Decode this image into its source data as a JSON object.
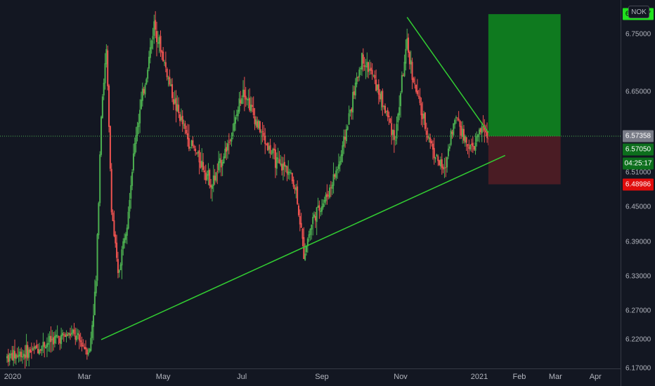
{
  "symbol": {
    "currency": "NOK"
  },
  "price_axis": {
    "ticks": [
      "6.75000",
      "6.65000",
      "6.51000",
      "6.45000",
      "6.39000",
      "6.33000",
      "6.27000",
      "6.22000",
      "6.17000"
    ]
  },
  "time_axis": {
    "labels": [
      "2020",
      "Mar",
      "May",
      "Jul",
      "Sep",
      "Nov",
      "2021",
      "Feb",
      "Mar",
      "Apr"
    ]
  },
  "badges": {
    "target": "6.78547",
    "last": "6.57358",
    "current": "6.57050",
    "countdown": "04:25:17",
    "stop": "6.48986"
  },
  "colors": {
    "background": "#131722",
    "up": "#26a69a",
    "up_candle": "#4caf50",
    "down": "#ef5350",
    "profit_zone": "#0f7a1f",
    "loss_zone": "#4a1c24",
    "trendline": "#32cd32",
    "target_badge": "#21e11f",
    "stop_badge": "#e00c0c"
  },
  "chart_data": {
    "type": "candlestick",
    "title": "",
    "xlabel": "",
    "ylabel": "",
    "ylim": [
      6.17,
      6.81
    ],
    "x_range": [
      "2020-01-01",
      "2021-04-15"
    ],
    "series": [
      {
        "name": "",
        "points": [
          [
            "2020-01-01",
            6.19
          ],
          [
            "2020-01-20",
            6.2
          ],
          [
            "2020-02-05",
            6.22
          ],
          [
            "2020-02-20",
            6.23
          ],
          [
            "2020-03-05",
            6.2
          ],
          [
            "2020-03-10",
            6.32
          ],
          [
            "2020-03-14",
            6.62
          ],
          [
            "2020-03-18",
            6.72
          ],
          [
            "2020-03-22",
            6.45
          ],
          [
            "2020-03-27",
            6.33
          ],
          [
            "2020-04-03",
            6.43
          ],
          [
            "2020-04-10",
            6.58
          ],
          [
            "2020-04-18",
            6.68
          ],
          [
            "2020-04-24",
            6.77
          ],
          [
            "2020-05-02",
            6.7
          ],
          [
            "2020-05-10",
            6.63
          ],
          [
            "2020-05-20",
            6.57
          ],
          [
            "2020-05-30",
            6.53
          ],
          [
            "2020-06-08",
            6.49
          ],
          [
            "2020-06-15",
            6.53
          ],
          [
            "2020-06-25",
            6.59
          ],
          [
            "2020-07-02",
            6.66
          ],
          [
            "2020-07-10",
            6.61
          ],
          [
            "2020-07-20",
            6.56
          ],
          [
            "2020-07-30",
            6.52
          ],
          [
            "2020-08-05",
            6.52
          ],
          [
            "2020-08-12",
            6.48
          ],
          [
            "2020-08-18",
            6.37
          ],
          [
            "2020-08-25",
            6.43
          ],
          [
            "2020-09-05",
            6.47
          ],
          [
            "2020-09-15",
            6.53
          ],
          [
            "2020-09-25",
            6.64
          ],
          [
            "2020-10-02",
            6.71
          ],
          [
            "2020-10-10",
            6.68
          ],
          [
            "2020-10-20",
            6.62
          ],
          [
            "2020-10-28",
            6.57
          ],
          [
            "2020-11-02",
            6.67
          ],
          [
            "2020-11-06",
            6.73
          ],
          [
            "2020-11-12",
            6.66
          ],
          [
            "2020-11-20",
            6.59
          ],
          [
            "2020-11-28",
            6.54
          ],
          [
            "2020-12-05",
            6.51
          ],
          [
            "2020-12-10",
            6.58
          ],
          [
            "2020-12-15",
            6.61
          ],
          [
            "2020-12-20",
            6.57
          ],
          [
            "2020-12-27",
            6.55
          ],
          [
            "2021-01-03",
            6.59
          ],
          [
            "2021-01-08",
            6.57
          ]
        ]
      }
    ],
    "trendlines": [
      {
        "name": "",
        "from": [
          "2020-03-14",
          6.22
        ],
        "to": [
          "2021-01-21",
          6.54
        ]
      },
      {
        "name": "",
        "from": [
          "2020-11-06",
          6.78
        ],
        "to": [
          "2021-01-08",
          6.58
        ]
      }
    ],
    "position": {
      "type": "long",
      "entry": 6.57358,
      "target": 6.78547,
      "stop": 6.48986,
      "from": "2021-01-08",
      "to": "2021-03-05"
    }
  }
}
